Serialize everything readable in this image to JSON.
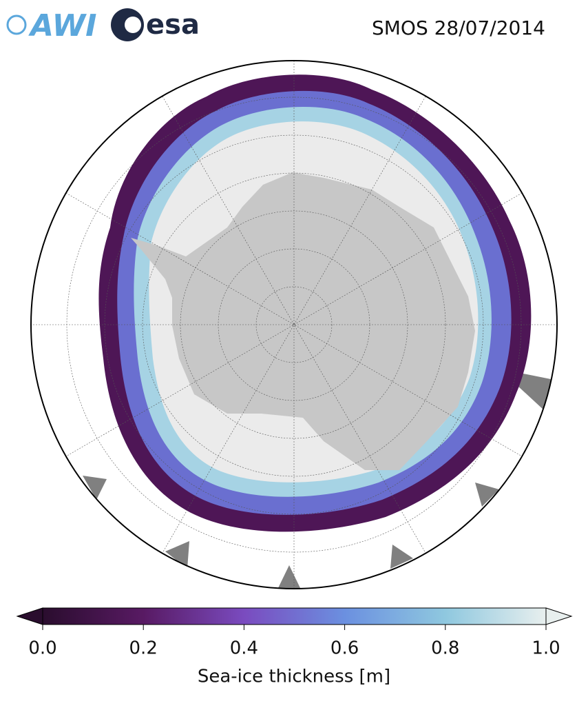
{
  "header": {
    "logos": [
      "AWI",
      "esa"
    ],
    "title": "SMOS 28/07/2014"
  },
  "colorbar": {
    "label": "Sea-ice thickness [m]",
    "lim": [
      0,
      1
    ],
    "ticks": [
      {
        "value": 0,
        "label": "0.0"
      },
      {
        "value": 0.2,
        "label": "0.2"
      },
      {
        "value": 0.4,
        "label": "0.4"
      },
      {
        "value": 0.6,
        "label": "0.6"
      },
      {
        "value": 0.8,
        "label": "0.8"
      },
      {
        "value": 1,
        "label": "1.0"
      }
    ],
    "colors": [
      "#2a0d2e",
      "#581a63",
      "#7a4bbf",
      "#6b90e0",
      "#8fc8df",
      "#e8efee"
    ]
  }
}
